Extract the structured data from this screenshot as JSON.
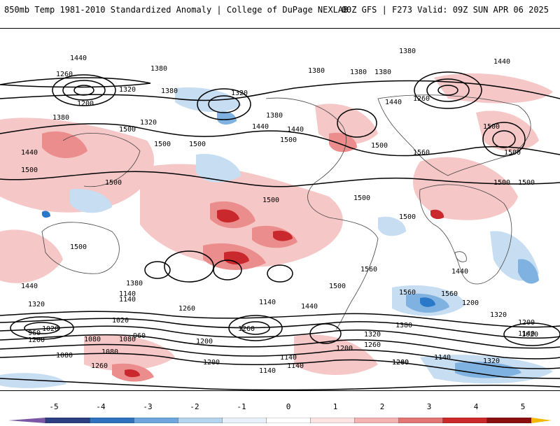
{
  "header": {
    "title": "850mb Temp 1981-2010 Standardized Anomaly | College of DuPage NEXLAB",
    "run_info": "00Z GFS | F273 Valid: 09Z SUN APR 06 2025"
  },
  "map": {
    "contour_labels": [
      "1440",
      "1380",
      "1260",
      "1380",
      "1380",
      "1380",
      "1380",
      "1440",
      "1320",
      "1380",
      "1320",
      "1200",
      "1440",
      "1380",
      "1260",
      "1320",
      "1380",
      "1440",
      "1500",
      "1440",
      "1500",
      "1440",
      "1500",
      "1500",
      "1560",
      "1500",
      "1500",
      "1500",
      "1500",
      "1500",
      "1500",
      "1500",
      "1500",
      "1500",
      "1500",
      "1560",
      "1500",
      "1440",
      "1560",
      "1560",
      "1500",
      "1440",
      "1380",
      "1140",
      "1320",
      "1260",
      "1440",
      "1140",
      "1200",
      "1140",
      "1020",
      "1080",
      "1260",
      "1320",
      "1200",
      "960",
      "1020",
      "1080",
      "960",
      "1140",
      "1080",
      "1200",
      "1200",
      "1080",
      "1380",
      "1320",
      "1260",
      "1200",
      "1140",
      "1020",
      "1320",
      "1260",
      "1200",
      "1140",
      "1260",
      "1200",
      "1140",
      "1140"
    ],
    "colors": {
      "warm_light": "#f6c7c7",
      "warm_mid": "#ec8d8d",
      "warm_strong": "#c9282c",
      "cold_light": "#c7ddf1",
      "cold_mid": "#7fb2e0",
      "cold_strong": "#2a79c9",
      "coast": "#444444",
      "contour": "#000000"
    }
  },
  "colorbar": {
    "ticks": [
      "-5",
      "-4",
      "-3",
      "-2",
      "-1",
      "0",
      "1",
      "2",
      "3",
      "4",
      "5"
    ],
    "segments": [
      "#7b58a6",
      "#2c3f83",
      "#2f72be",
      "#6da7dd",
      "#b5d4ee",
      "#e9f2fa",
      "#ffffff",
      "#fde5e5",
      "#f4b4b4",
      "#e47575",
      "#cc2a2a",
      "#8a1010",
      "#f5b800"
    ]
  }
}
